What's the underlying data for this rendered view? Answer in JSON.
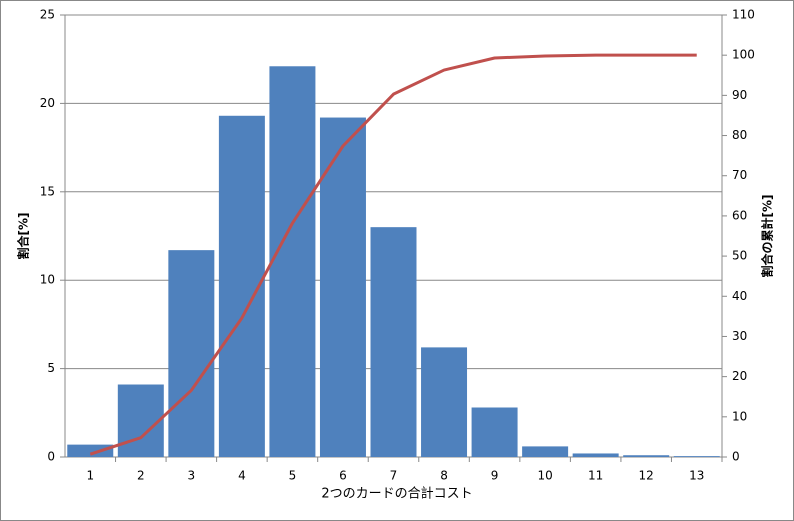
{
  "chart_data": {
    "type": "bar",
    "xlabel": "2つのカードの合計コスト",
    "ylabel": "割合[%]",
    "y2label": "割合の累計[%]",
    "categories": [
      "1",
      "2",
      "3",
      "4",
      "5",
      "6",
      "7",
      "8",
      "9",
      "10",
      "11",
      "12",
      "13"
    ],
    "series": [
      {
        "type": "bar",
        "color": "#4f81bd",
        "values": [
          0.7,
          4.1,
          11.7,
          19.3,
          22.1,
          19.2,
          13.0,
          6.2,
          2.8,
          0.6,
          0.2,
          0.1,
          0.05
        ]
      },
      {
        "type": "line",
        "axis": "y2",
        "color": "#c0504d",
        "values": [
          0.7,
          4.8,
          16.6,
          34.6,
          58.2,
          77.4,
          90.3,
          96.3,
          99.3,
          99.8,
          100,
          100,
          100
        ]
      }
    ],
    "ylim": [
      0,
      25
    ],
    "yticks": [
      0,
      5,
      10,
      15,
      20,
      25
    ],
    "y2lim": [
      0,
      110
    ],
    "y2ticks": [
      0,
      10,
      20,
      30,
      40,
      50,
      60,
      70,
      80,
      90,
      100,
      110
    ],
    "grid": true
  }
}
